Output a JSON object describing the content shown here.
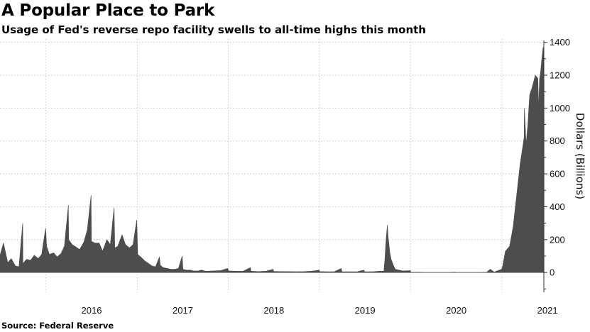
{
  "header": {
    "title": "A Popular Place to Park",
    "subtitle": "Usage of Fed's reverse repo facility swells to all-time highs this month"
  },
  "footer": {
    "source_label": "Source:",
    "source_value": "Federal Reserve"
  },
  "chart_data": {
    "type": "area",
    "title": "A Popular Place to Park",
    "subtitle": "Usage of Fed's reverse repo facility swells to all-time highs this month",
    "xlabel": "",
    "ylabel": "Dollars (Billions)",
    "ylim": [
      -120,
      1420
    ],
    "yticks": [
      0,
      200,
      400,
      600,
      800,
      1000,
      1200,
      1400
    ],
    "xlim": [
      "2015-07-01",
      "2021-06-18"
    ],
    "xtick_labels": [
      {
        "label": "2016",
        "date": "2016-01-01"
      },
      {
        "label": "2017",
        "date": "2017-01-01"
      },
      {
        "label": "2018",
        "date": "2018-01-01"
      },
      {
        "label": "2019",
        "date": "2019-01-01"
      },
      {
        "label": "2020",
        "date": "2020-01-01"
      },
      {
        "label": "2021",
        "date": "2021-01-01"
      }
    ],
    "grid": true,
    "legend": "none",
    "fill_color": "#4d4d4d",
    "series": [
      {
        "x": [
          "2015-07-01",
          "2015-07-15",
          "2015-08-01",
          "2015-08-15",
          "2015-09-01",
          "2015-09-15",
          "2015-09-30",
          "2015-10-01",
          "2015-10-15",
          "2015-11-01",
          "2015-11-15",
          "2015-12-01",
          "2015-12-15",
          "2015-12-31",
          "2016-01-04",
          "2016-01-15",
          "2016-02-01",
          "2016-02-15",
          "2016-03-01",
          "2016-03-15",
          "2016-03-31",
          "2016-04-01",
          "2016-04-15",
          "2016-05-01",
          "2016-05-15",
          "2016-06-01",
          "2016-06-15",
          "2016-06-30",
          "2016-07-01",
          "2016-07-15",
          "2016-08-01",
          "2016-08-15",
          "2016-09-01",
          "2016-09-15",
          "2016-09-30",
          "2016-10-03",
          "2016-10-15",
          "2016-11-01",
          "2016-11-15",
          "2016-12-01",
          "2016-12-15",
          "2016-12-30",
          "2017-01-03",
          "2017-01-15",
          "2017-02-01",
          "2017-02-15",
          "2017-03-01",
          "2017-03-15",
          "2017-03-31",
          "2017-04-03",
          "2017-04-15",
          "2017-05-01",
          "2017-05-15",
          "2017-06-01",
          "2017-06-15",
          "2017-06-30",
          "2017-07-03",
          "2017-07-15",
          "2017-08-01",
          "2017-08-15",
          "2017-09-01",
          "2017-09-15",
          "2017-10-01",
          "2017-11-01",
          "2017-12-01",
          "2017-12-29",
          "2018-01-02",
          "2018-02-01",
          "2018-03-01",
          "2018-03-30",
          "2018-04-02",
          "2018-05-01",
          "2018-06-01",
          "2018-06-29",
          "2018-07-02",
          "2018-08-01",
          "2018-09-01",
          "2018-10-01",
          "2018-11-01",
          "2018-12-01",
          "2018-12-31",
          "2019-01-02",
          "2019-02-01",
          "2019-03-01",
          "2019-03-29",
          "2019-04-01",
          "2019-05-01",
          "2019-06-01",
          "2019-06-28",
          "2019-07-01",
          "2019-08-01",
          "2019-09-01",
          "2019-09-16",
          "2019-09-17",
          "2019-09-20",
          "2019-09-25",
          "2019-09-30",
          "2019-10-03",
          "2019-10-10",
          "2019-10-15",
          "2019-10-25",
          "2019-11-01",
          "2019-12-01",
          "2019-12-31",
          "2020-01-02",
          "2020-02-01",
          "2020-03-01",
          "2020-04-01",
          "2020-05-01",
          "2020-06-01",
          "2020-06-30",
          "2020-07-01",
          "2020-08-01",
          "2020-09-01",
          "2020-10-01",
          "2020-11-01",
          "2020-11-15",
          "2020-12-01",
          "2020-12-31",
          "2021-01-04",
          "2021-01-15",
          "2021-02-01",
          "2021-02-15",
          "2021-03-01",
          "2021-03-15",
          "2021-03-31",
          "2021-04-01",
          "2021-04-08",
          "2021-04-15",
          "2021-04-22",
          "2021-05-01",
          "2021-05-15",
          "2021-05-25",
          "2021-05-28",
          "2021-06-01",
          "2021-06-05",
          "2021-06-10",
          "2021-06-15",
          "2021-06-17"
        ],
        "y": [
          105,
          180,
          60,
          85,
          40,
          35,
          300,
          55,
          80,
          75,
          105,
          85,
          110,
          270,
          160,
          110,
          120,
          95,
          115,
          160,
          410,
          200,
          170,
          155,
          140,
          185,
          260,
          470,
          190,
          180,
          180,
          130,
          200,
          170,
          395,
          150,
          160,
          230,
          170,
          150,
          170,
          320,
          110,
          95,
          70,
          55,
          40,
          35,
          95,
          45,
          30,
          25,
          20,
          20,
          25,
          100,
          20,
          15,
          15,
          10,
          10,
          15,
          8,
          10,
          12,
          25,
          10,
          8,
          8,
          30,
          8,
          6,
          8,
          20,
          7,
          6,
          6,
          5,
          6,
          8,
          15,
          6,
          5,
          5,
          25,
          5,
          5,
          5,
          15,
          5,
          5,
          8,
          8,
          25,
          80,
          200,
          290,
          220,
          120,
          80,
          40,
          20,
          10,
          12,
          3,
          2,
          1,
          1,
          1,
          1,
          2,
          1,
          1,
          1,
          1,
          2,
          20,
          3,
          20,
          40,
          130,
          160,
          280,
          470,
          660,
          820,
          1000,
          780,
          900,
          1080,
          1120,
          1200,
          1180,
          1000,
          1180,
          1220,
          1300,
          1370,
          1360
        ]
      }
    ]
  }
}
